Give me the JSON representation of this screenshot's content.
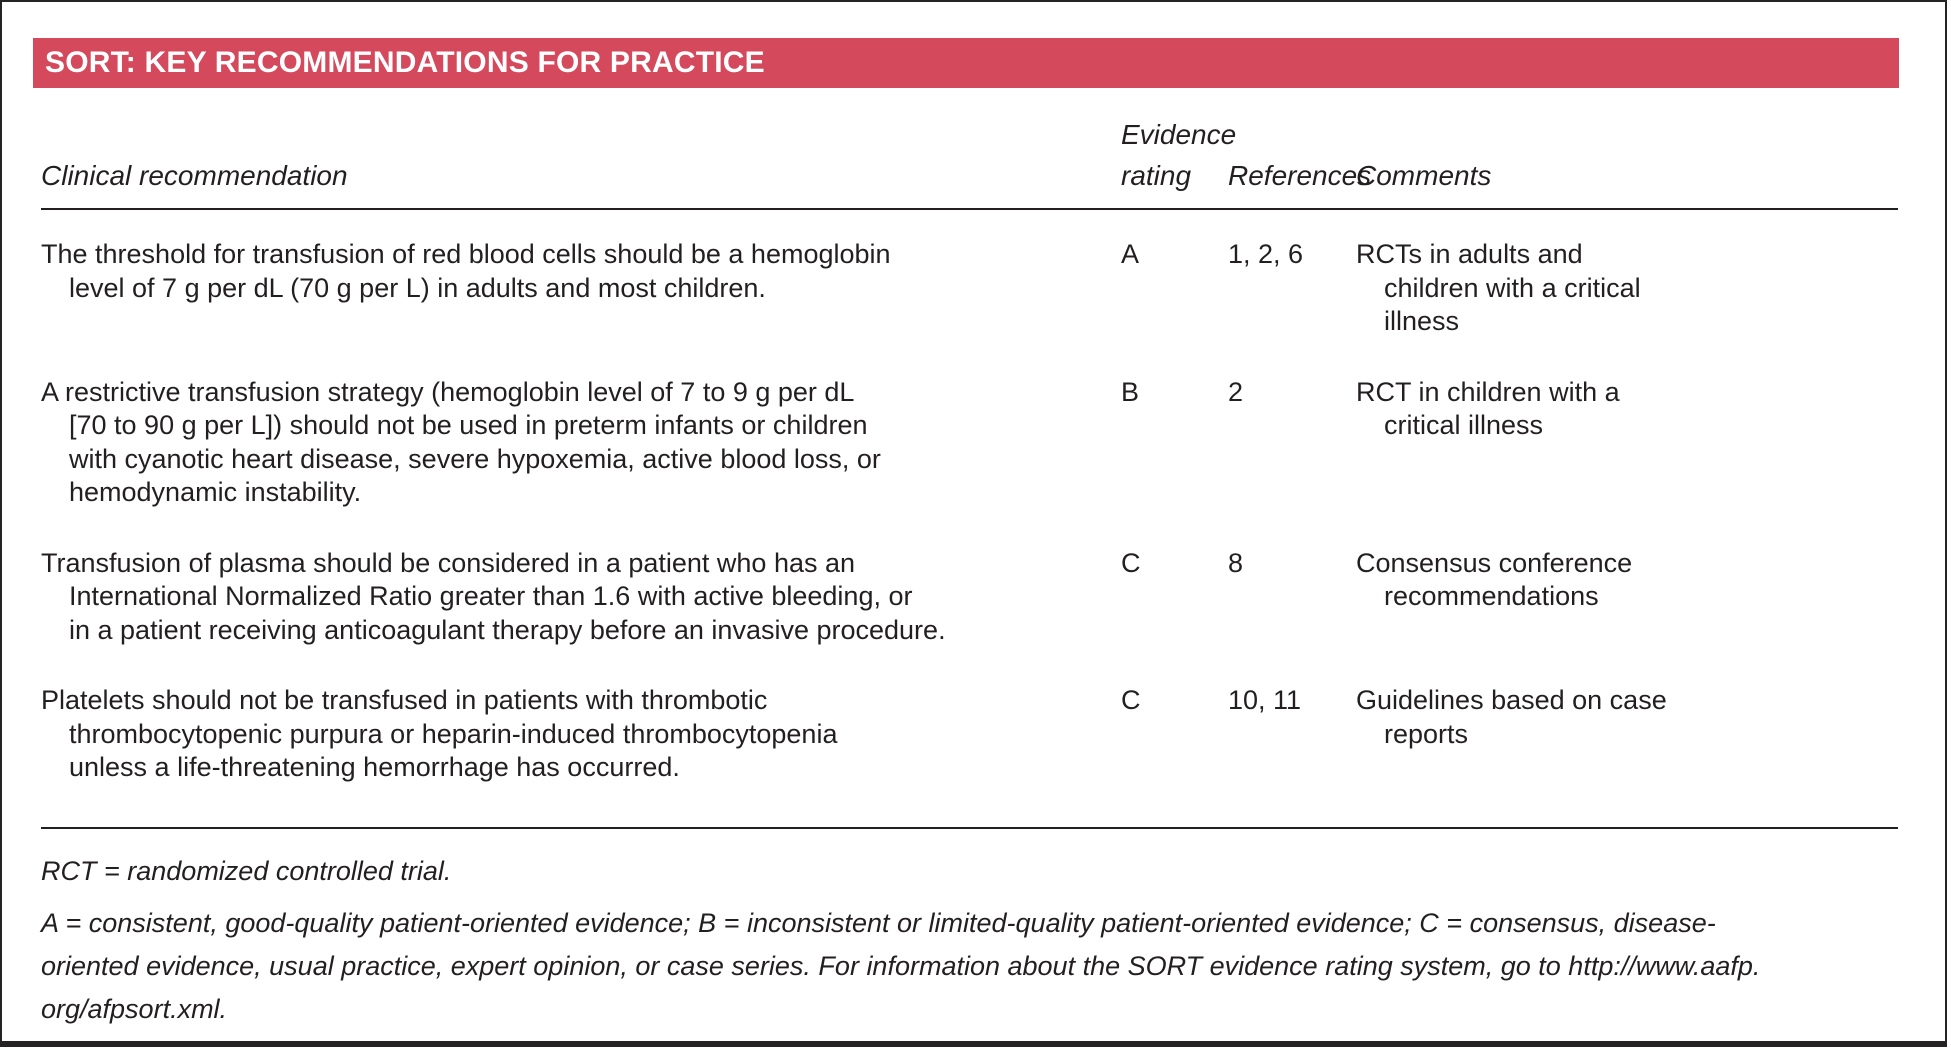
{
  "title": "SORT: KEY RECOMMENDATIONS FOR PRACTICE",
  "colors": {
    "header_bar_bg": "#d4495c",
    "header_bar_text": "#ffffff",
    "body_text": "#231f20",
    "rule": "#231f20"
  },
  "table": {
    "headers": {
      "clinical": "Clinical recommendation",
      "evidence": "Evidence\nrating",
      "references": "References",
      "comments": "Comments"
    },
    "rows": [
      {
        "recommendation": "The threshold for transfusion of red blood cells should be a hemoglobin\nlevel of 7 g per dL (70 g per L) in adults and most children.",
        "evidence": "A",
        "references": "1, 2, 6",
        "comments": "RCTs in adults and\nchildren with a critical\nillness"
      },
      {
        "recommendation": "A restrictive transfusion strategy (hemoglobin level of 7 to 9 g per dL\n[70 to 90 g per L]) should not be used in preterm infants or children\nwith cyanotic heart disease, severe hypoxemia, active blood loss, or\nhemodynamic instability.",
        "evidence": "B",
        "references": "2",
        "comments": "RCT in children with a\ncritical illness"
      },
      {
        "recommendation": "Transfusion of plasma should be considered in a patient who has an\nInternational Normalized Ratio greater than 1.6 with active bleeding, or\nin a patient receiving anticoagulant therapy before an invasive procedure.",
        "evidence": "C",
        "references": "8",
        "comments": "Consensus conference\nrecommendations"
      },
      {
        "recommendation": "Platelets should not be transfused in patients with thrombotic\nthrombocytopenic purpura or heparin-induced thrombocytopenia\nunless a life-threatening hemorrhage has occurred.",
        "evidence": "C",
        "references": "10, 11",
        "comments": "Guidelines based on case\nreports"
      }
    ]
  },
  "footnotes": {
    "abbreviation": "RCT = randomized controlled trial.",
    "sort_note": "A = consistent, good-quality patient-oriented evidence; B = inconsistent or limited-quality patient-oriented evidence; C = consensus, disease-\noriented evidence, usual practice, expert opinion, or case series. For information about the SORT evidence rating system, go to http://www.aafp.\norg/afpsort.xml."
  }
}
